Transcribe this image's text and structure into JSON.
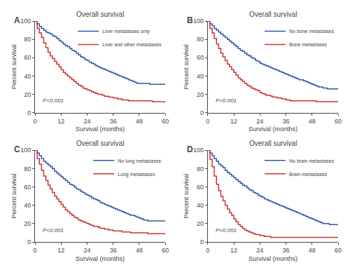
{
  "chart_data": [
    {
      "type": "step",
      "title": "Overall survival",
      "x_label": "Survival (months)",
      "y_label": "Percent survival",
      "annotations": [
        "A",
        "P<0.001"
      ],
      "x": [
        0,
        1,
        2,
        3,
        4,
        5,
        6,
        7,
        8,
        9,
        10,
        11,
        12,
        13,
        14,
        15,
        16,
        17,
        18,
        19,
        20,
        21,
        22,
        23,
        24,
        25,
        26,
        27,
        28,
        29,
        30,
        31,
        32,
        33,
        34,
        35,
        36,
        37,
        38,
        39,
        40,
        41,
        42,
        43,
        44,
        45,
        46,
        47,
        48,
        49,
        50,
        51,
        52,
        53,
        54,
        55,
        56,
        57,
        58,
        59,
        60
      ],
      "series": [
        {
          "name": "Liver metastases only",
          "color": "#3355AA",
          "values": [
            100,
            97,
            94,
            92,
            90,
            88,
            87,
            86,
            84,
            83,
            81,
            79,
            77,
            75,
            73,
            72,
            70,
            68,
            67,
            65,
            63,
            61,
            60,
            58,
            57,
            55,
            54,
            53,
            51,
            50,
            49,
            48,
            47,
            46,
            45,
            44,
            43,
            42,
            41,
            40,
            39,
            38,
            37,
            36,
            35,
            34,
            33,
            32,
            32,
            32,
            32,
            32,
            32,
            31,
            31,
            31,
            31,
            31,
            31,
            31,
            31
          ]
        },
        {
          "name": "Liver and other metastases",
          "color": "#CC3333",
          "values": [
            100,
            92,
            87,
            82,
            76,
            71,
            66,
            62,
            59,
            56,
            53,
            50,
            47,
            44,
            42,
            40,
            38,
            36,
            34,
            32,
            30,
            29,
            27,
            26,
            25,
            24,
            23,
            22,
            21,
            20,
            20,
            19,
            18,
            18,
            17,
            17,
            16,
            16,
            15,
            15,
            14,
            14,
            14,
            13,
            13,
            13,
            13,
            13,
            13,
            13,
            13,
            13,
            13,
            13,
            12,
            12,
            12,
            12,
            12,
            12,
            12
          ]
        }
      ],
      "xlim": [
        0,
        60
      ],
      "ylim": [
        0,
        100
      ],
      "xticks": [
        0,
        12,
        24,
        36,
        48,
        60
      ],
      "yticks": [
        0,
        20,
        40,
        60,
        80,
        100
      ],
      "grid": false,
      "legend": "upper right"
    },
    {
      "type": "step",
      "title": "Overall survival",
      "x_label": "Survival (months)",
      "y_label": "Percent survival",
      "annotations": [
        "B",
        "P<0.001"
      ],
      "x": [
        0,
        1,
        2,
        3,
        4,
        5,
        6,
        7,
        8,
        9,
        10,
        11,
        12,
        13,
        14,
        15,
        16,
        17,
        18,
        19,
        20,
        21,
        22,
        23,
        24,
        25,
        26,
        27,
        28,
        29,
        30,
        31,
        32,
        33,
        34,
        35,
        36,
        37,
        38,
        39,
        40,
        41,
        42,
        43,
        44,
        45,
        46,
        47,
        48,
        49,
        50,
        51,
        52,
        53,
        54,
        55,
        56,
        57,
        58,
        59,
        60
      ],
      "series": [
        {
          "name": "No bone metastases",
          "color": "#3355AA",
          "values": [
            100,
            97,
            95,
            92,
            90,
            88,
            86,
            84,
            82,
            80,
            78,
            76,
            74,
            72,
            70,
            68,
            67,
            65,
            63,
            62,
            60,
            59,
            57,
            56,
            54,
            53,
            52,
            51,
            50,
            49,
            48,
            47,
            46,
            45,
            44,
            43,
            42,
            41,
            40,
            39,
            38,
            37,
            36,
            36,
            35,
            34,
            33,
            32,
            31,
            30,
            29,
            28,
            28,
            27,
            27,
            26,
            26,
            26,
            26,
            26,
            25
          ]
        },
        {
          "name": "Bone metastases",
          "color": "#CC3333",
          "values": [
            100,
            92,
            87,
            81,
            75,
            70,
            65,
            61,
            57,
            53,
            50,
            47,
            44,
            41,
            38,
            36,
            34,
            32,
            30,
            29,
            27,
            26,
            25,
            24,
            22,
            21,
            20,
            19,
            19,
            18,
            17,
            17,
            16,
            16,
            15,
            15,
            14,
            14,
            13,
            13,
            13,
            13,
            13,
            13,
            13,
            13,
            13,
            13,
            13,
            13,
            12,
            12,
            12,
            12,
            12,
            12,
            12,
            12,
            12,
            12,
            12
          ]
        }
      ],
      "xlim": [
        0,
        60
      ],
      "ylim": [
        0,
        100
      ],
      "xticks": [
        0,
        12,
        24,
        36,
        48,
        60
      ],
      "yticks": [
        0,
        20,
        40,
        60,
        80,
        100
      ],
      "grid": false,
      "legend": "upper right"
    },
    {
      "type": "step",
      "title": "Overall survival",
      "x_label": "Survival (months)",
      "y_label": "Percent survival",
      "annotations": [
        "C",
        "P<0.001"
      ],
      "x": [
        0,
        1,
        2,
        3,
        4,
        5,
        6,
        7,
        8,
        9,
        10,
        11,
        12,
        13,
        14,
        15,
        16,
        17,
        18,
        19,
        20,
        21,
        22,
        23,
        24,
        25,
        26,
        27,
        28,
        29,
        30,
        31,
        32,
        33,
        34,
        35,
        36,
        37,
        38,
        39,
        40,
        41,
        42,
        43,
        44,
        45,
        46,
        47,
        48,
        49,
        50,
        51,
        52,
        53,
        54,
        55,
        56,
        57,
        58,
        59,
        60
      ],
      "series": [
        {
          "name": "No lung metastases",
          "color": "#3355AA",
          "values": [
            100,
            97,
            94,
            91,
            88,
            86,
            84,
            82,
            80,
            77,
            75,
            73,
            71,
            69,
            67,
            65,
            63,
            62,
            60,
            58,
            57,
            55,
            54,
            52,
            51,
            50,
            48,
            47,
            46,
            45,
            43,
            42,
            41,
            40,
            39,
            38,
            37,
            36,
            35,
            34,
            33,
            32,
            31,
            30,
            29,
            29,
            28,
            27,
            26,
            25,
            24,
            24,
            23,
            23,
            23,
            23,
            23,
            23,
            23,
            23,
            23
          ]
        },
        {
          "name": "Lung metastases",
          "color": "#CC3333",
          "values": [
            100,
            91,
            85,
            78,
            72,
            67,
            62,
            58,
            54,
            50,
            47,
            44,
            41,
            38,
            35,
            33,
            31,
            29,
            27,
            26,
            24,
            23,
            22,
            21,
            20,
            19,
            18,
            17,
            17,
            16,
            15,
            15,
            14,
            14,
            13,
            13,
            12,
            12,
            12,
            12,
            11,
            11,
            11,
            11,
            10,
            10,
            10,
            10,
            10,
            10,
            10,
            10,
            9,
            9,
            9,
            9,
            9,
            9,
            9,
            9,
            9
          ]
        }
      ],
      "xlim": [
        0,
        60
      ],
      "ylim": [
        0,
        100
      ],
      "xticks": [
        0,
        12,
        24,
        36,
        48,
        60
      ],
      "yticks": [
        0,
        20,
        40,
        60,
        80,
        100
      ],
      "grid": false,
      "legend": "upper right"
    },
    {
      "type": "step",
      "title": "Overall survival",
      "x_label": "Survival (months)",
      "y_label": "Percent survival",
      "annotations": [
        "D",
        "P<0.001"
      ],
      "x": [
        0,
        1,
        2,
        3,
        4,
        5,
        6,
        7,
        8,
        9,
        10,
        11,
        12,
        13,
        14,
        15,
        16,
        17,
        18,
        19,
        20,
        21,
        22,
        23,
        24,
        25,
        26,
        27,
        28,
        29,
        30,
        31,
        32,
        33,
        34,
        35,
        36,
        37,
        38,
        39,
        40,
        41,
        42,
        43,
        44,
        45,
        46,
        47,
        48,
        49,
        50,
        51,
        52,
        53,
        54,
        55,
        56,
        57,
        58,
        59,
        60
      ],
      "series": [
        {
          "name": "No brain metastases",
          "color": "#3355AA",
          "values": [
            100,
            97,
            94,
            91,
            88,
            85,
            83,
            81,
            78,
            76,
            74,
            72,
            70,
            68,
            66,
            64,
            62,
            61,
            59,
            57,
            56,
            54,
            53,
            51,
            50,
            49,
            47,
            46,
            45,
            44,
            43,
            42,
            41,
            40,
            39,
            38,
            37,
            36,
            35,
            34,
            33,
            32,
            31,
            30,
            29,
            28,
            27,
            26,
            25,
            24,
            23,
            22,
            21,
            20,
            20,
            20,
            19,
            19,
            19,
            19,
            18
          ]
        },
        {
          "name": "Brain metastases",
          "color": "#CC3333",
          "values": [
            100,
            90,
            82,
            72,
            63,
            56,
            50,
            45,
            40,
            36,
            32,
            29,
            25,
            22,
            19,
            17,
            15,
            13,
            12,
            11,
            10,
            9,
            8,
            8,
            7,
            7,
            6,
            6,
            6,
            5,
            5,
            5,
            5,
            5,
            5,
            5,
            5,
            5,
            5,
            5,
            5,
            5,
            5,
            5,
            5,
            5,
            5,
            5,
            5,
            5,
            5,
            5,
            5,
            5,
            5,
            5,
            5,
            5,
            5,
            5,
            5
          ]
        }
      ],
      "xlim": [
        0,
        60
      ],
      "ylim": [
        0,
        100
      ],
      "xticks": [
        0,
        12,
        24,
        36,
        48,
        60
      ],
      "yticks": [
        0,
        20,
        40,
        60,
        80,
        100
      ],
      "grid": false,
      "legend": "upper right"
    }
  ]
}
